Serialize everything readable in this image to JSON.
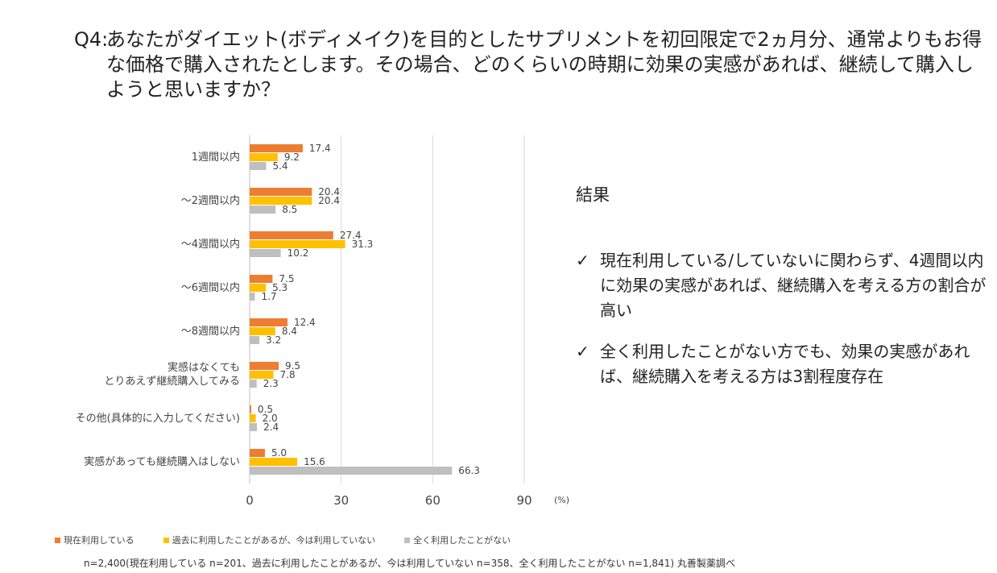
{
  "question": {
    "label": "Q4:",
    "text": "あなたがダイエット(ボディメイク)を目的としたサプリメントを初回限定で2ヵ月分、通常よりもお得な価格で購入されたとします。その場合、どのくらいの時期に効果の実感があれば、継続して購入しようと思いますか？"
  },
  "chart_data": {
    "type": "bar",
    "orientation": "horizontal",
    "categories": [
      "1週間以内",
      "～2週間以内",
      "～4週間以内",
      "～6週間以内",
      "～8週間以内",
      "実感はなくても\nとりあえず継続購入してみる",
      "その他(具体的に入力してください)",
      "実感があっても継続購入はしない"
    ],
    "series": [
      {
        "name": "現在利用している",
        "color": "#ED7D31",
        "values": [
          17.4,
          20.4,
          27.4,
          7.5,
          12.4,
          9.5,
          0.5,
          5.0
        ]
      },
      {
        "name": "過去に利用したことがあるが、今は利用していない",
        "color": "#FFC000",
        "values": [
          9.2,
          20.4,
          31.3,
          5.3,
          8.4,
          7.8,
          2.0,
          15.6
        ]
      },
      {
        "name": "全く利用したことがない",
        "color": "#BFBFBF",
        "values": [
          5.4,
          8.5,
          10.2,
          1.7,
          3.2,
          2.3,
          2.4,
          66.3
        ]
      }
    ],
    "xlim": [
      0,
      90
    ],
    "xticks": [
      "0",
      "30",
      "60",
      "90"
    ],
    "unit": "(%)",
    "grid": true,
    "legend_position": "bottom"
  },
  "results": {
    "title": "結果",
    "items": [
      {
        "mark": "✓",
        "text": "現在利用している/していないに関わらず、4週間以内に効果の実感があれば、継続購入を考える方の割合が高い"
      },
      {
        "mark": "✓",
        "text": "全く利用したことがない方でも、効果の実感があれば、継続購入を考える方は3割程度存在"
      }
    ]
  },
  "footnote": "n=2,400(現在利用している n=201、過去に利用したことがあるが、今は利用していない n=358、全く利用したことがない n=1,841) 丸善製薬調べ"
}
